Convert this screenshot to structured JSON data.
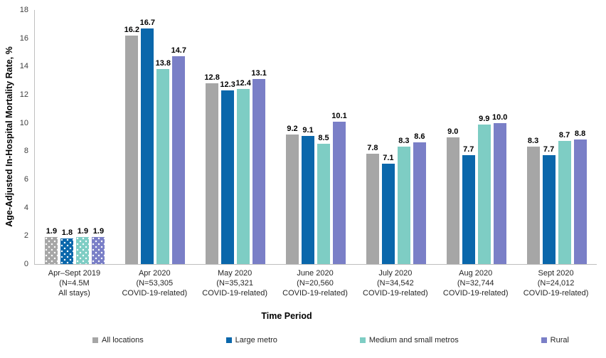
{
  "chart_data": {
    "type": "bar",
    "title": "",
    "xlabel": "Time Period",
    "ylabel": "Age-Adjusted In-Hospital Mortality Rate, %",
    "ylim": [
      0,
      18
    ],
    "ytick_step": 2,
    "grid": false,
    "legend_position": "bottom",
    "axis_color": "#BFBFBF",
    "value_label_decimals": 1,
    "first_group_pattern": "white-dots",
    "categories": [
      "Apr–Sept 2019\n(N=4.5M\nAll stays)",
      "Apr 2020\n(N=53,305\nCOVID-19-related)",
      "May 2020\n(N=35,321\nCOVID-19-related)",
      "June 2020\n(N=20,560\nCOVID-19-related)",
      "July 2020\n(N=34,542\nCOVID-19-related)",
      "Aug 2020\n(N=32,744\nCOVID-19-related)",
      "Sept 2020\n(N=24,012\nCOVID-19-related)"
    ],
    "series": [
      {
        "name": "All locations",
        "color": "#A6A6A6",
        "values": [
          1.9,
          16.2,
          12.8,
          9.2,
          7.8,
          9.0,
          8.3
        ]
      },
      {
        "name": "Large metro",
        "color": "#0A67AB",
        "values": [
          1.8,
          16.7,
          12.3,
          9.1,
          7.1,
          7.7,
          7.7
        ]
      },
      {
        "name": "Medium and small metros",
        "color": "#7ECDC4",
        "values": [
          1.9,
          13.8,
          12.4,
          8.5,
          8.3,
          9.9,
          8.7
        ]
      },
      {
        "name": "Rural",
        "color": "#7A7FC7",
        "values": [
          1.9,
          14.7,
          13.1,
          10.1,
          8.6,
          10.0,
          8.8
        ]
      }
    ]
  }
}
